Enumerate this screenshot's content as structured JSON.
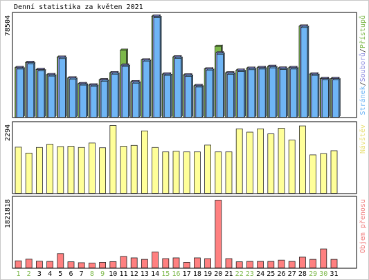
{
  "chart_data": {
    "type": "bar",
    "title": "Denní statistika za květen 2021",
    "categories": [
      "1",
      "2",
      "3",
      "4",
      "5",
      "6",
      "7",
      "8",
      "9",
      "10",
      "11",
      "12",
      "13",
      "14",
      "15",
      "16",
      "17",
      "18",
      "19",
      "20",
      "21",
      "22",
      "23",
      "24",
      "25",
      "26",
      "27",
      "28",
      "29",
      "30",
      "31"
    ],
    "weekend_days": [
      "1",
      "2",
      "8",
      "9",
      "15",
      "16",
      "22",
      "23",
      "29",
      "30"
    ],
    "panels": [
      {
        "name": "hits",
        "max_label": "78504",
        "legend": [
          {
            "text": "Stránek",
            "color": "#6fb5f5"
          },
          {
            "text": "/",
            "color": "#333333"
          },
          {
            "text": "Souborů",
            "color": "#9090e0"
          },
          {
            "text": "/",
            "color": "#333333"
          },
          {
            "text": "Přístupů",
            "color": "#7cb84a"
          }
        ],
        "series": [
          {
            "name": "Přístupů",
            "color": "#7cb84a",
            "values": [
              38500,
              42500,
              37000,
              33000,
              46600,
              30500,
              26000,
              25000,
              29000,
              34500,
              52000,
              27500,
              44500,
              78504,
              33500,
              46800,
              32800,
              24500,
              37500,
              55000,
              34400,
              36500,
              38000,
              38500,
              39400,
              38100,
              38500,
              70800,
              33500,
              30000,
              30000
            ]
          },
          {
            "name": "Souborů",
            "color": "#9090e0",
            "values": [
              38500,
              42500,
              37000,
              33000,
              46600,
              30500,
              26000,
              25000,
              29000,
              34500,
              40500,
              27500,
              44500,
              78504,
              33500,
              46800,
              32800,
              24500,
              37500,
              50000,
              34400,
              36500,
              38000,
              38500,
              39400,
              38100,
              38500,
              70800,
              33500,
              30000,
              30000
            ]
          },
          {
            "name": "Stránek",
            "color": "#6fb5f5",
            "values": [
              37400,
              41400,
              35900,
              31900,
              45500,
              29400,
              24900,
              23900,
              27900,
              33400,
              39400,
              26400,
              43400,
              77400,
              32400,
              45700,
              31700,
              23400,
              36400,
              48900,
              33300,
              35400,
              36900,
              37400,
              38300,
              37000,
              37400,
              69700,
              32400,
              28900,
              28900
            ]
          }
        ]
      },
      {
        "name": "visits",
        "max_label": "2294",
        "legend": [
          {
            "text": "Návštěv",
            "color": "#e8e078"
          }
        ],
        "series": [
          {
            "name": "Návštěv",
            "color": "#ffff99",
            "values": [
              1560,
              1360,
              1550,
              1660,
              1580,
              1590,
              1550,
              1700,
              1540,
              2294,
              1590,
              1620,
              2110,
              1550,
              1400,
              1420,
              1400,
              1400,
              1630,
              1400,
              1400,
              2180,
              2070,
              2180,
              2010,
              2200,
              1800,
              2280,
              1300,
              1340,
              1440
            ]
          }
        ]
      },
      {
        "name": "kbytes",
        "max_label": "1821818",
        "legend": [
          {
            "text": "Objem přenosu",
            "color": "#f08080"
          }
        ],
        "series": [
          {
            "name": "Objem přenosu",
            "color": "#ff8080",
            "values": [
              190000,
              235000,
              180000,
              175000,
              385000,
              165000,
              140000,
              130000,
              150000,
              170000,
              310000,
              270000,
              230000,
              430000,
              250000,
              270000,
              150000,
              270000,
              250000,
              1821818,
              250000,
              165000,
              175000,
              175000,
              175000,
              210000,
              175000,
              290000,
              230000,
              510000,
              230000
            ]
          }
        ]
      }
    ]
  }
}
